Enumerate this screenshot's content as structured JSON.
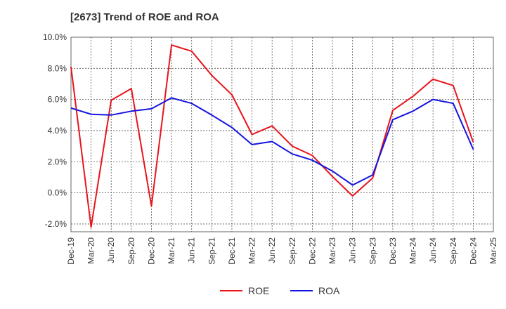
{
  "chart_data": {
    "type": "line",
    "title": "[2673]  Trend of ROE and ROA",
    "xlabel": "",
    "ylabel": "",
    "categories": [
      "Dec-19",
      "Mar-20",
      "Jun-20",
      "Sep-20",
      "Dec-20",
      "Mar-21",
      "Jun-21",
      "Sep-21",
      "Dec-21",
      "Mar-22",
      "Jun-22",
      "Sep-22",
      "Dec-22",
      "Mar-23",
      "Jun-23",
      "Sep-23",
      "Dec-23",
      "Mar-24",
      "Jun-24",
      "Sep-24",
      "Dec-24",
      "Mar-25"
    ],
    "y_ticks": [
      "-2.0%",
      "0.0%",
      "2.0%",
      "4.0%",
      "6.0%",
      "8.0%",
      "10.0%"
    ],
    "ylim": [
      -2.5,
      10.0
    ],
    "grid": true,
    "legend_position": "bottom",
    "series": [
      {
        "name": "ROE",
        "color": "#e8141c",
        "values": [
          8.1,
          -2.2,
          5.95,
          6.7,
          -0.85,
          9.5,
          9.1,
          7.55,
          6.3,
          3.75,
          4.3,
          3.0,
          2.4,
          1.05,
          -0.2,
          0.95,
          5.3,
          6.2,
          7.3,
          6.9,
          3.25,
          null
        ]
      },
      {
        "name": "ROA",
        "color": "#1414e0",
        "values": [
          5.45,
          5.05,
          5.0,
          5.25,
          5.4,
          6.1,
          5.75,
          5.0,
          4.2,
          3.1,
          3.3,
          2.5,
          2.1,
          1.4,
          0.5,
          1.15,
          4.7,
          5.25,
          6.0,
          5.75,
          2.8,
          null
        ]
      }
    ]
  }
}
